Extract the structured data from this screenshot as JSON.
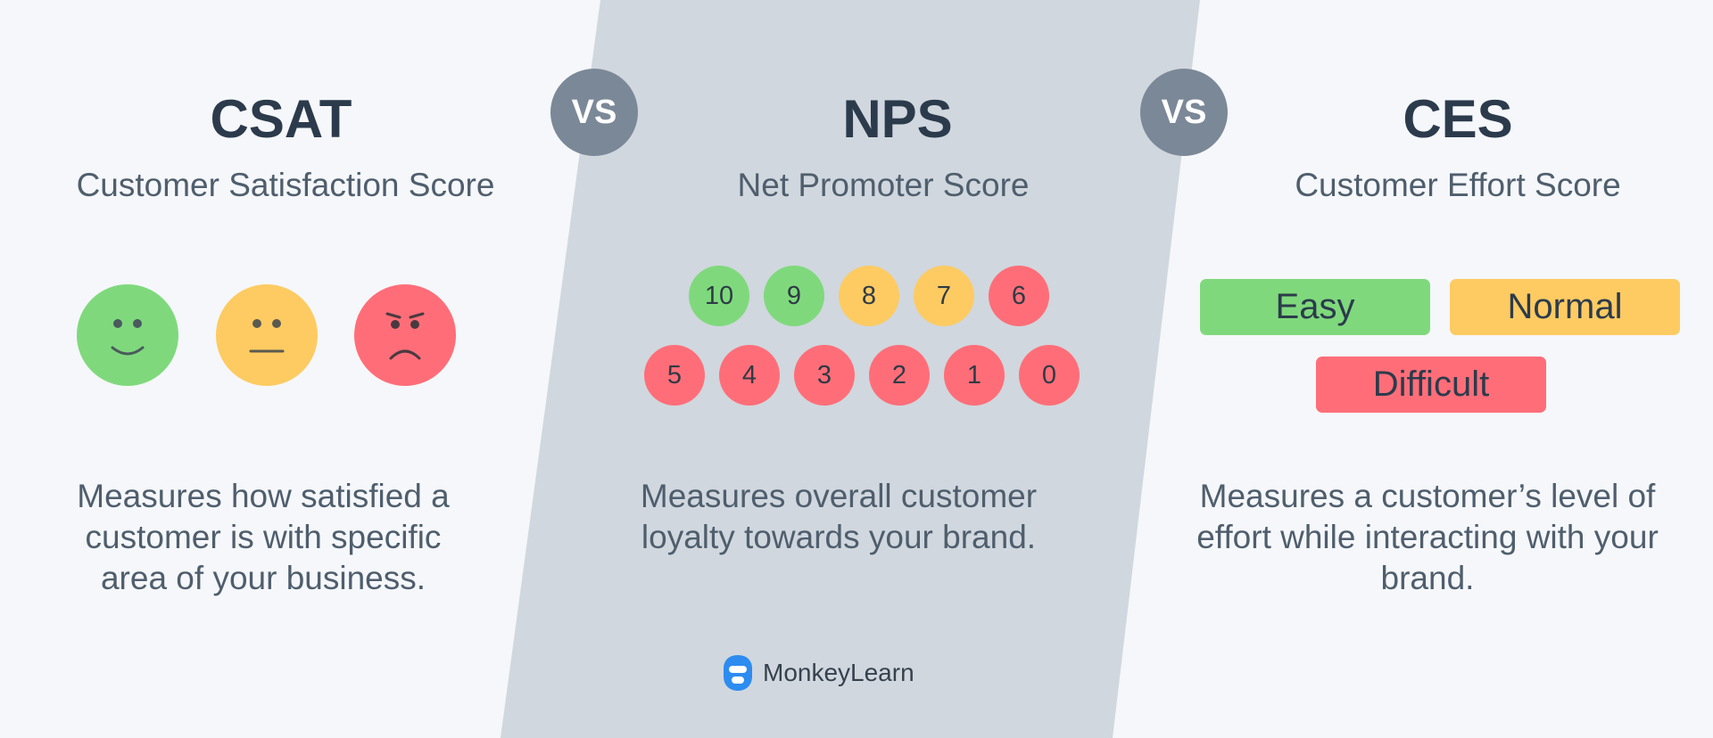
{
  "colors": {
    "green": "#7fd97c",
    "yellow": "#fdcb62",
    "red": "#ff6e78",
    "band": "#d0d7de",
    "vs": "#7b8898",
    "heading": "#2c3b4c",
    "text": "#4f5e6d"
  },
  "vs_label": "VS",
  "csat": {
    "title": "CSAT",
    "subtitle": "Customer Satisfaction Score",
    "faces": [
      {
        "mood": "happy",
        "icon": "happy-face-icon",
        "color": "green"
      },
      {
        "mood": "neutral",
        "icon": "neutral-face-icon",
        "color": "yellow"
      },
      {
        "mood": "angry",
        "icon": "angry-face-icon",
        "color": "red"
      }
    ],
    "description": "Measures how satisfied a customer is with specific area of your business."
  },
  "nps": {
    "title": "NPS",
    "subtitle": "Net Promoter Score",
    "scores": [
      {
        "label": "10",
        "color": "green"
      },
      {
        "label": "9",
        "color": "green"
      },
      {
        "label": "8",
        "color": "yellow"
      },
      {
        "label": "7",
        "color": "yellow"
      },
      {
        "label": "6",
        "color": "red"
      },
      {
        "label": "5",
        "color": "red"
      },
      {
        "label": "4",
        "color": "red"
      },
      {
        "label": "3",
        "color": "red"
      },
      {
        "label": "2",
        "color": "red"
      },
      {
        "label": "1",
        "color": "red"
      },
      {
        "label": "0",
        "color": "red"
      }
    ],
    "description": "Measures overall customer loyalty towards your brand."
  },
  "ces": {
    "title": "CES",
    "subtitle": "Customer Effort Score",
    "levels": [
      {
        "label": "Easy",
        "color": "green"
      },
      {
        "label": "Normal",
        "color": "yellow"
      },
      {
        "label": "Difficult",
        "color": "red"
      }
    ],
    "description": "Measures a customer’s level of effort while interacting with your brand."
  },
  "brand": {
    "name": "MonkeyLearn",
    "icon": "monkey-logo-icon",
    "color": "#2d8cf0"
  }
}
